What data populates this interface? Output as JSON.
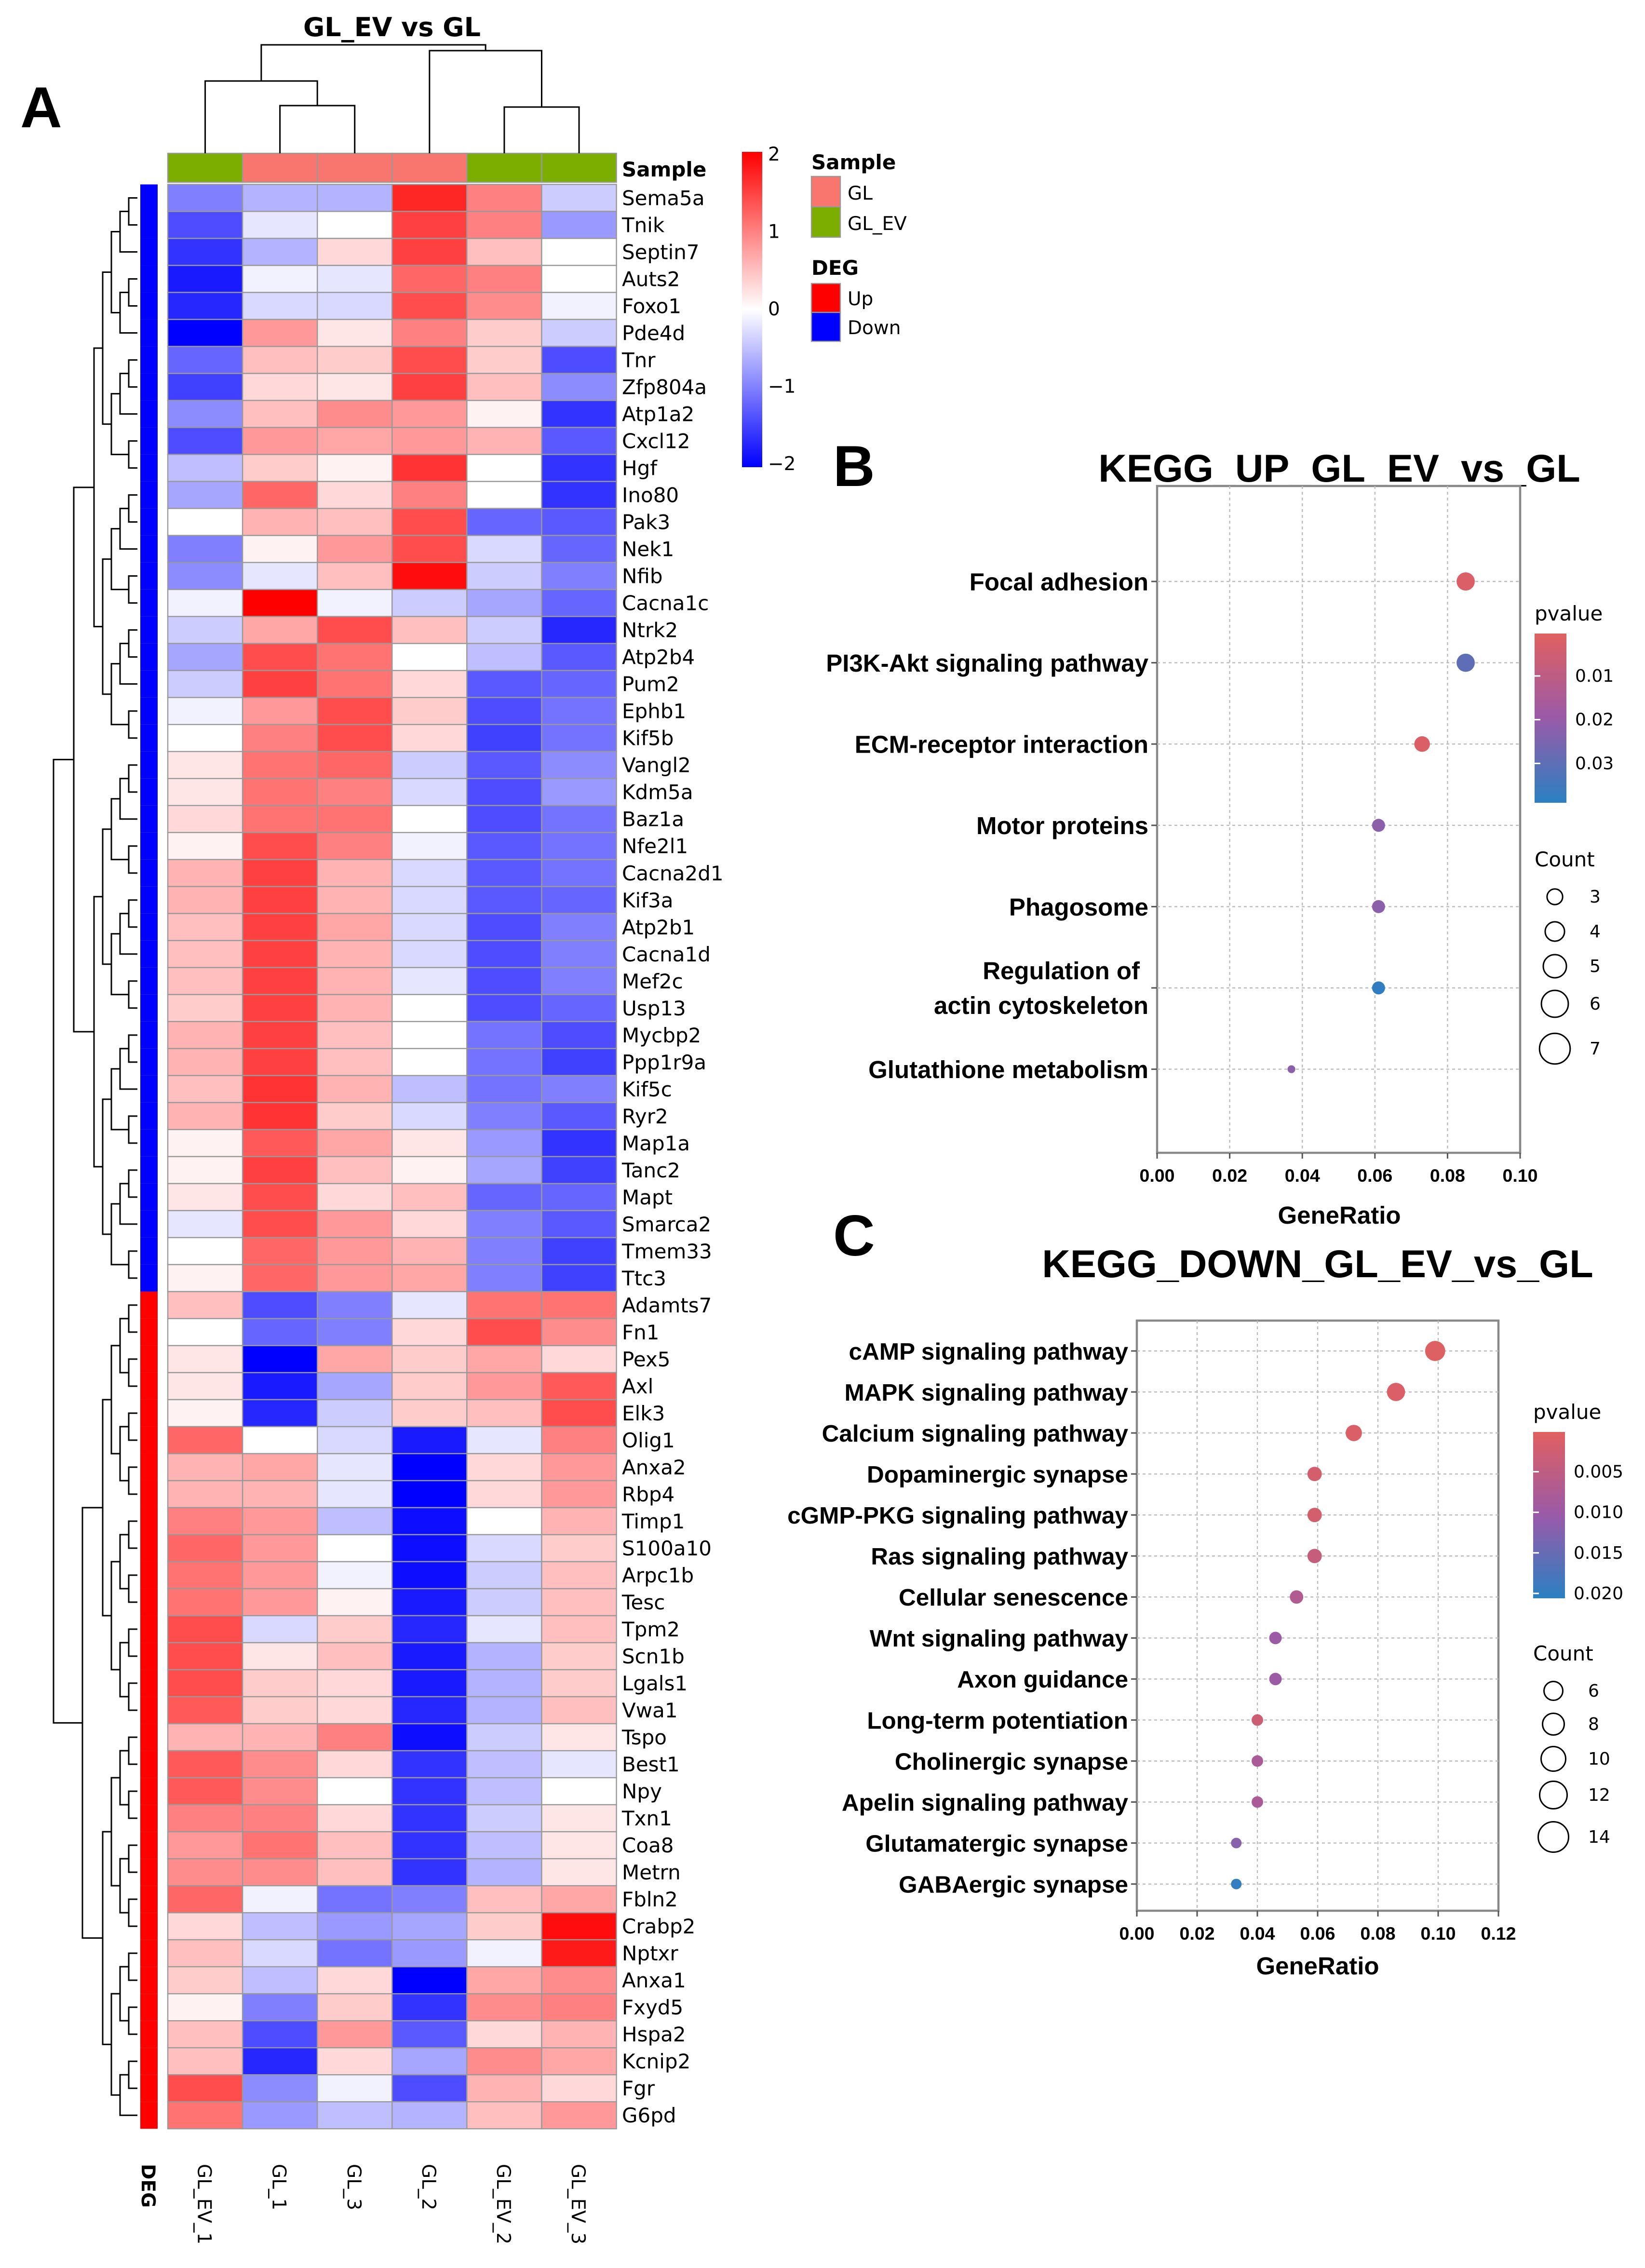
{
  "panel_labels": {
    "a": "A",
    "b": "B",
    "c": "C"
  },
  "chart_data": [
    {
      "type": "heatmap",
      "title": "GL_EV vs GL",
      "samples": [
        "GL_EV_1",
        "GL_1",
        "GL_3",
        "GL_2",
        "GL_EV_2",
        "GL_EV_3"
      ],
      "sample_groups": [
        "GL_EV",
        "GL",
        "GL",
        "GL",
        "GL_EV",
        "GL_EV"
      ],
      "annotation_labels": {
        "sample": "Sample",
        "deg": "DEG"
      },
      "color_scale": {
        "min": -2,
        "max": 2,
        "ticks": [
          "2",
          "1",
          "0",
          "−1",
          "−2"
        ],
        "low": "#0000ff",
        "mid": "#ffffff",
        "high": "#ff0000"
      },
      "legend": {
        "sample_title": "Sample",
        "sample_items": [
          {
            "label": "GL",
            "color": "#f8766d"
          },
          {
            "label": "GL_EV",
            "color": "#7cae00"
          }
        ],
        "deg_title": "DEG",
        "deg_items": [
          {
            "label": "Up",
            "color": "#ff0000"
          },
          {
            "label": "Down",
            "color": "#0000ff"
          }
        ]
      },
      "genes": [
        "Sema5a",
        "Tnik",
        "Septin7",
        "Auts2",
        "Foxo1",
        "Pde4d",
        "Tnr",
        "Zfp804a",
        "Atp1a2",
        "Cxcl12",
        "Hgf",
        "Ino80",
        "Pak3",
        "Nek1",
        "Nfib",
        "Cacna1c",
        "Ntrk2",
        "Atp2b4",
        "Pum2",
        "Ephb1",
        "Kif5b",
        "Vangl2",
        "Kdm5a",
        "Baz1a",
        "Nfe2l1",
        "Cacna2d1",
        "Kif3a",
        "Atp2b1",
        "Cacna1d",
        "Mef2c",
        "Usp13",
        "Mycbp2",
        "Ppp1r9a",
        "Kif5c",
        "Ryr2",
        "Map1a",
        "Tanc2",
        "Mapt",
        "Smarca2",
        "Tmem33",
        "Ttc3",
        "Adamts7",
        "Fn1",
        "Pex5",
        "Axl",
        "Elk3",
        "Olig1",
        "Anxa2",
        "Rbp4",
        "Timp1",
        "S100a10",
        "Arpc1b",
        "Tesc",
        "Tpm2",
        "Scn1b",
        "Lgals1",
        "Vwa1",
        "Tspo",
        "Best1",
        "Npy",
        "Txn1",
        "Coa8",
        "Metrn",
        "Fbln2",
        "Crabp2",
        "Nptxr",
        "Anxa1",
        "Fxyd5",
        "Hspa2",
        "Kcnip2",
        "Fgr",
        "G6pd"
      ],
      "deg_down_count": 41,
      "deg_up_count": 31,
      "values": [
        [
          -1,
          -0.6,
          -0.6,
          1.7,
          1.0,
          -0.4
        ],
        [
          -1.4,
          -0.2,
          0,
          1.5,
          1.0,
          -0.8
        ],
        [
          -1.6,
          -0.6,
          0.3,
          1.5,
          0.5,
          0
        ],
        [
          -1.8,
          -0.1,
          -0.2,
          1.2,
          1.0,
          0
        ],
        [
          -1.7,
          -0.3,
          -0.3,
          1.4,
          0.9,
          -0.1
        ],
        [
          -2,
          0.8,
          0.2,
          1.0,
          0.4,
          -0.4
        ],
        [
          -1.2,
          0.5,
          0.4,
          1.4,
          0.4,
          -1.4
        ],
        [
          -1.5,
          0.3,
          0.2,
          1.5,
          0.5,
          -0.9
        ],
        [
          -0.9,
          0.5,
          0.9,
          0.8,
          0.1,
          -1.6
        ],
        [
          -1.4,
          0.8,
          0.7,
          0.8,
          0.6,
          -1.3
        ],
        [
          -0.5,
          0.4,
          0.1,
          1.6,
          0,
          -1.6
        ],
        [
          -0.7,
          1.2,
          0.3,
          1.0,
          0,
          -1.6
        ],
        [
          0,
          0.6,
          0.5,
          1.4,
          -1.2,
          -1.3
        ],
        [
          -1,
          0.1,
          0.8,
          1.4,
          -0.3,
          -1.2
        ],
        [
          -0.9,
          -0.2,
          0.5,
          1.9,
          -0.4,
          -1.0
        ],
        [
          -0.1,
          2,
          -0.1,
          -0.4,
          -0.7,
          -1.2
        ],
        [
          -0.4,
          0.7,
          1.4,
          0.5,
          -0.4,
          -1.7
        ],
        [
          -0.7,
          1.4,
          1.1,
          0,
          -0.5,
          -1.3
        ],
        [
          -0.4,
          1.5,
          1.1,
          0.3,
          -1.3,
          -1.2
        ],
        [
          -0.1,
          0.8,
          1.4,
          0.4,
          -1.4,
          -1.1
        ],
        [
          0,
          1.0,
          1.4,
          0.3,
          -1.5,
          -1.1
        ],
        [
          0.2,
          1.1,
          1.2,
          -0.4,
          -1.3,
          -0.9
        ],
        [
          0.2,
          1.1,
          1.0,
          -0.3,
          -1.4,
          -0.8
        ],
        [
          0.3,
          1.1,
          1.1,
          0,
          -1.4,
          -1.1
        ],
        [
          0.1,
          1.4,
          1.0,
          -0.1,
          -1.3,
          -1.1
        ],
        [
          0.6,
          1.5,
          0.6,
          -0.3,
          -1.3,
          -1.1
        ],
        [
          0.6,
          1.5,
          0.6,
          -0.3,
          -1.3,
          -1.2
        ],
        [
          0.5,
          1.5,
          0.7,
          -0.3,
          -1.4,
          -1.0
        ],
        [
          0.5,
          1.5,
          0.6,
          -0.3,
          -1.4,
          -1.0
        ],
        [
          0.5,
          1.5,
          0.6,
          -0.2,
          -1.4,
          -1.0
        ],
        [
          0.4,
          1.5,
          0.6,
          0,
          -1.4,
          -1.2
        ],
        [
          0.6,
          1.5,
          0.5,
          0,
          -1.1,
          -1.4
        ],
        [
          0.6,
          1.5,
          0.5,
          0,
          -1.1,
          -1.5
        ],
        [
          0.5,
          1.6,
          0.6,
          -0.5,
          -1.1,
          -1.0
        ],
        [
          0.6,
          1.6,
          0.4,
          -0.3,
          -1.0,
          -1.3
        ],
        [
          0.1,
          1.3,
          0.7,
          0.2,
          -0.8,
          -1.6
        ],
        [
          0.1,
          1.5,
          0.5,
          0.1,
          -0.7,
          -1.5
        ],
        [
          0.2,
          1.4,
          0.3,
          0.5,
          -1.2,
          -1.2
        ],
        [
          -0.2,
          1.4,
          0.8,
          0.3,
          -1.0,
          -1.3
        ],
        [
          0,
          1.2,
          0.8,
          0.6,
          -1.0,
          -1.5
        ],
        [
          0.1,
          1.2,
          0.8,
          0.7,
          -1.0,
          -1.5
        ],
        [
          0.5,
          -1.4,
          -1.0,
          -0.2,
          1.1,
          1.1
        ],
        [
          0,
          -1.2,
          -1.0,
          0.3,
          1.4,
          0.9
        ],
        [
          0.2,
          -2,
          0.7,
          0.4,
          0.7,
          0.3
        ],
        [
          0.2,
          -1.8,
          -0.7,
          0.4,
          0.8,
          1.3
        ],
        [
          0.1,
          -1.7,
          -0.4,
          0.4,
          0.5,
          1.4
        ],
        [
          1.2,
          0,
          -0.3,
          -1.8,
          -0.2,
          1.0
        ],
        [
          0.6,
          0.7,
          -0.2,
          -2,
          0.3,
          0.8
        ],
        [
          0.6,
          0.6,
          -0.2,
          -2,
          0.3,
          0.8
        ],
        [
          1.0,
          0.8,
          -0.5,
          -1.9,
          0,
          0.6
        ],
        [
          1.2,
          0.8,
          0,
          -1.9,
          -0.3,
          0.4
        ],
        [
          1.1,
          0.8,
          -0.1,
          -1.9,
          -0.4,
          0.5
        ],
        [
          1.1,
          0.8,
          0.1,
          -1.8,
          -0.4,
          0.5
        ],
        [
          1.4,
          -0.3,
          0.4,
          -1.7,
          -0.2,
          0.5
        ],
        [
          1.4,
          0.2,
          0.5,
          -1.8,
          -0.6,
          0.4
        ],
        [
          1.4,
          0.4,
          0.3,
          -1.8,
          -0.6,
          0.4
        ],
        [
          1.3,
          0.4,
          0.3,
          -1.7,
          -0.6,
          0.5
        ],
        [
          0.6,
          0.6,
          1.0,
          -1.9,
          -0.4,
          0.2
        ],
        [
          1.3,
          0.9,
          0.3,
          -1.6,
          -0.5,
          -0.2
        ],
        [
          1.3,
          0.9,
          0,
          -1.6,
          -0.5,
          0
        ],
        [
          1.0,
          1.0,
          0.3,
          -1.6,
          -0.4,
          0.2
        ],
        [
          0.8,
          1.1,
          0.5,
          -1.6,
          -0.5,
          0.2
        ],
        [
          0.9,
          0.9,
          0.5,
          -1.6,
          -0.6,
          0.2
        ],
        [
          1.2,
          -0.1,
          -1.1,
          -1.0,
          0.5,
          0.7
        ],
        [
          0.3,
          -0.5,
          -0.8,
          -0.7,
          0.4,
          1.9
        ],
        [
          0.5,
          -0.3,
          -1.1,
          -0.8,
          -0.1,
          1.8
        ],
        [
          0.4,
          -0.5,
          0.3,
          -2,
          0.7,
          0.9
        ],
        [
          0.1,
          -1.0,
          0.4,
          -1.6,
          0.9,
          1.0
        ],
        [
          0.5,
          -1.4,
          0.8,
          -1.3,
          0.3,
          0.6
        ],
        [
          0.5,
          -1.7,
          0.3,
          -0.7,
          0.9,
          0.7
        ],
        [
          1.4,
          -0.9,
          -0.1,
          -1.4,
          0.6,
          0.3
        ],
        [
          1.1,
          -0.8,
          -0.5,
          -0.6,
          0.5,
          0.8
        ]
      ]
    },
    {
      "type": "scatter",
      "title": "KEGG_UP_GL_EV_vs_GL",
      "xlabel": "GeneRatio",
      "xlim": [
        0,
        0.1
      ],
      "xticks": [
        "0.00",
        "0.02",
        "0.04",
        "0.06",
        "0.08",
        "0.10"
      ],
      "grid": true,
      "categories": [
        "Focal adhesion",
        "PI3K-Akt signaling pathway",
        "ECM-receptor interaction",
        "Motor proteins",
        "Phagosome",
        "Regulation of",
        "Glutathione metabolism"
      ],
      "category_line2": [
        "",
        "",
        "",
        "",
        "",
        "actin cytoskeleton",
        ""
      ],
      "gene_ratio": [
        0.085,
        0.085,
        0.073,
        0.061,
        0.061,
        0.061,
        0.037
      ],
      "count": [
        7,
        7,
        6,
        5,
        5,
        5,
        3
      ],
      "pvalue": [
        0.002,
        0.03,
        0.002,
        0.022,
        0.022,
        0.038,
        0.022
      ],
      "color_legend": {
        "title": "pvalue",
        "ticks": [
          "0.01",
          "0.02",
          "0.03"
        ],
        "tick_values": [
          0.01,
          0.02,
          0.03
        ],
        "range": [
          0.0003,
          0.039
        ],
        "low_color": "#e06060",
        "mid_color": "#9a5aa8",
        "high_color": "#2a80c2"
      },
      "size_legend": {
        "title": "Count",
        "values": [
          3,
          4,
          5,
          6,
          7
        ],
        "labels": [
          "3",
          "4",
          "5",
          "6",
          "7"
        ]
      }
    },
    {
      "type": "scatter",
      "title": "KEGG_DOWN_GL_EV_vs_GL",
      "xlabel": "GeneRatio",
      "xlim": [
        0,
        0.12
      ],
      "xticks": [
        "0.00",
        "0.02",
        "0.04",
        "0.06",
        "0.08",
        "0.10",
        "0.12"
      ],
      "grid": true,
      "categories": [
        "cAMP signaling pathway",
        "MAPK signaling pathway",
        "Calcium signaling pathway",
        "Dopaminergic synapse",
        "cGMP-PKG signaling pathway",
        "Ras signaling pathway",
        "Cellular senescence",
        "Wnt signaling pathway",
        "Axon guidance",
        "Long-term potentiation",
        "Cholinergic synapse",
        "Apelin signaling pathway",
        "Glutamatergic synapse",
        "GABAergic synapse"
      ],
      "gene_ratio": [
        0.099,
        0.086,
        0.072,
        0.059,
        0.059,
        0.059,
        0.053,
        0.046,
        0.046,
        0.04,
        0.04,
        0.04,
        0.033,
        0.033
      ],
      "count": [
        15,
        13,
        11,
        9,
        9,
        9,
        8,
        7,
        7,
        6,
        6,
        6,
        5,
        5
      ],
      "pvalue": [
        0.0005,
        0.001,
        0.001,
        0.002,
        0.002,
        0.004,
        0.007,
        0.01,
        0.01,
        0.003,
        0.008,
        0.008,
        0.012,
        0.02
      ],
      "color_legend": {
        "title": "pvalue",
        "ticks": [
          "0.005",
          "0.010",
          "0.015",
          "0.020"
        ],
        "tick_values": [
          0.005,
          0.01,
          0.015,
          0.02
        ],
        "range": [
          0.0001,
          0.0206
        ],
        "low_color": "#e06060",
        "mid_color": "#9a5aa8",
        "high_color": "#2a80c2"
      },
      "size_legend": {
        "title": "Count",
        "values": [
          6,
          8,
          10,
          12,
          14
        ],
        "labels": [
          "6",
          "8",
          "10",
          "12",
          "14"
        ]
      }
    }
  ]
}
